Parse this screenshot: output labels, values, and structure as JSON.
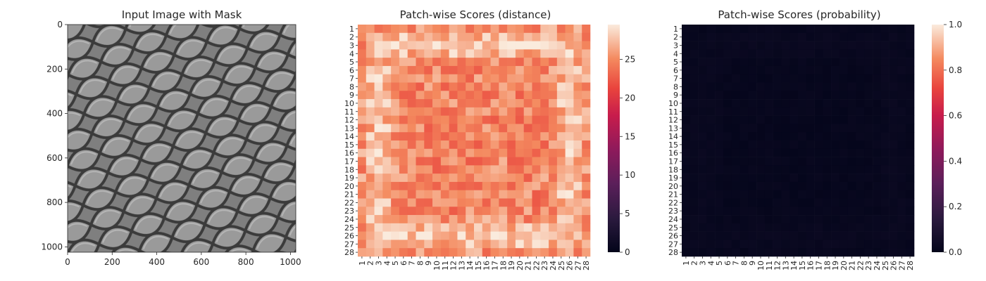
{
  "chart_data": [
    {
      "type": "image",
      "title": "Input Image with Mask",
      "x_ticks": [
        0,
        200,
        400,
        600,
        800,
        1000
      ],
      "y_ticks": [
        0,
        200,
        400,
        600,
        800,
        1000
      ],
      "xlim": [
        0,
        1024
      ],
      "ylim": [
        1024,
        0
      ],
      "grid": false
    },
    {
      "type": "heatmap",
      "title": "Patch-wise Scores (distance)",
      "grid_size": 28,
      "row_labels": [
        "1",
        "2",
        "3",
        "4",
        "5",
        "6",
        "7",
        "8",
        "9",
        "10",
        "11",
        "12",
        "13",
        "14",
        "15",
        "16",
        "17",
        "18",
        "19",
        "20",
        "21",
        "22",
        "23",
        "24",
        "25",
        "26",
        "27",
        "28"
      ],
      "col_labels": [
        "1",
        "2",
        "3",
        "4",
        "5",
        "6",
        "7",
        "8",
        "9",
        "10",
        "11",
        "12",
        "13",
        "14",
        "15",
        "16",
        "17",
        "18",
        "19",
        "20",
        "21",
        "22",
        "23",
        "24",
        "25",
        "26",
        "27",
        "28"
      ],
      "colorbar": {
        "min": 0,
        "max": 29.5,
        "ticks": [
          0,
          5,
          10,
          15,
          20,
          25
        ]
      },
      "colormap": "rocket",
      "value_range_shown": [
        20,
        29.5
      ]
    },
    {
      "type": "heatmap",
      "title": "Patch-wise Scores (probability)",
      "grid_size": 28,
      "row_labels": [
        "1",
        "2",
        "3",
        "4",
        "5",
        "6",
        "7",
        "8",
        "9",
        "10",
        "11",
        "12",
        "13",
        "14",
        "15",
        "16",
        "17",
        "18",
        "19",
        "20",
        "21",
        "22",
        "23",
        "24",
        "25",
        "26",
        "27",
        "28"
      ],
      "col_labels": [
        "1",
        "2",
        "3",
        "4",
        "5",
        "6",
        "7",
        "8",
        "9",
        "10",
        "11",
        "12",
        "13",
        "14",
        "15",
        "16",
        "17",
        "18",
        "19",
        "20",
        "21",
        "22",
        "23",
        "24",
        "25",
        "26",
        "27",
        "28"
      ],
      "colorbar": {
        "min": 0.0,
        "max": 1.0,
        "ticks": [
          "0.0",
          "0.2",
          "0.4",
          "0.6",
          "0.8",
          "1.0"
        ]
      },
      "colormap": "rocket",
      "value_range_shown": [
        0.0,
        0.03
      ]
    }
  ]
}
